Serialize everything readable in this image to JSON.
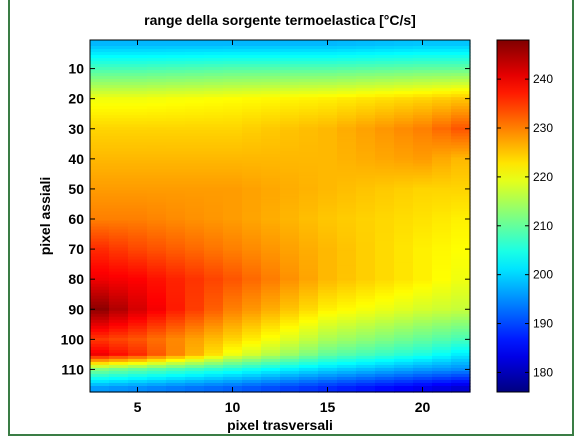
{
  "chart_data": {
    "type": "heatmap",
    "title": "range della sorgente termoelastica [°C/s]",
    "xlabel": "pixel trasversali",
    "ylabel": "pixel assiali",
    "x_range": [
      2.5,
      22.5
    ],
    "y_range": [
      0.5,
      117.5
    ],
    "y_reversed": true,
    "x_ticks": [
      5,
      10,
      15,
      20
    ],
    "y_ticks": [
      10,
      20,
      30,
      40,
      50,
      60,
      70,
      80,
      90,
      100,
      110
    ],
    "colorbar": {
      "colormap": "jet",
      "range": [
        176,
        248
      ],
      "ticks": [
        180,
        190,
        200,
        210,
        220,
        230,
        240
      ]
    },
    "grid_note": "values estimated from colors, sampled every 5 columns x 10 rows",
    "x": [
      3,
      5,
      10,
      15,
      20,
      22
    ],
    "y": [
      2,
      10,
      20,
      30,
      40,
      50,
      60,
      70,
      80,
      90,
      100,
      105,
      110,
      116
    ],
    "values": [
      [
        198,
        198,
        198,
        198,
        199,
        199
      ],
      [
        208,
        208,
        209,
        209,
        210,
        210
      ],
      [
        220,
        220,
        221,
        222,
        224,
        225
      ],
      [
        224,
        224,
        224,
        226,
        230,
        233
      ],
      [
        226,
        226,
        226,
        226,
        228,
        226
      ],
      [
        228,
        228,
        228,
        226,
        224,
        224
      ],
      [
        230,
        230,
        228,
        225,
        223,
        222
      ],
      [
        236,
        234,
        230,
        226,
        222,
        221
      ],
      [
        240,
        239,
        233,
        226,
        222,
        220
      ],
      [
        247,
        242,
        230,
        222,
        218,
        217
      ],
      [
        235,
        233,
        224,
        215,
        210,
        208
      ],
      [
        240,
        236,
        220,
        210,
        205,
        202
      ],
      [
        212,
        210,
        205,
        200,
        196,
        195
      ],
      [
        196,
        195,
        192,
        188,
        184,
        182
      ]
    ]
  }
}
